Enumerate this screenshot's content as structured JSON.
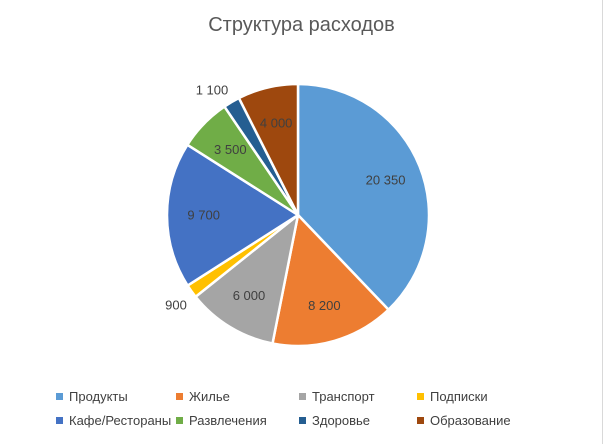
{
  "chart_data": {
    "type": "pie",
    "title": "Структура расходов",
    "categories": [
      "Продукты",
      "Жилье",
      "Транспорт",
      "Подписки",
      "Кафе/Рестораны",
      "Развлечения",
      "Здоровье",
      "Образование"
    ],
    "values": [
      20350,
      8200,
      6000,
      900,
      9700,
      3500,
      1100,
      4000
    ],
    "data_labels": [
      "20 350",
      "8 200",
      "6 000",
      "900",
      "9 700",
      "3 500",
      "1 100",
      "4 000"
    ],
    "colors": [
      "#5B9BD5",
      "#ED7D31",
      "#A5A5A5",
      "#FFC000",
      "#4472C4",
      "#70AD47",
      "#255E91",
      "#9E480E"
    ],
    "start_angle": 0,
    "direction": "clockwise",
    "legend_position": "bottom"
  }
}
